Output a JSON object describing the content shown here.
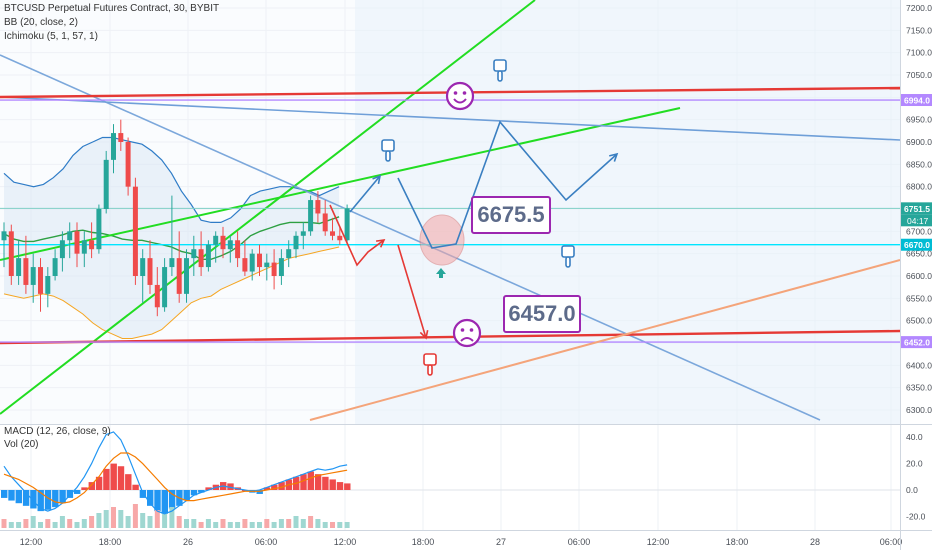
{
  "header": {
    "symbol_line": "BTCUSD Perpetual Futures Contract, 30, BYBIT",
    "bb": "BB (20, close, 2)",
    "ichimoku": "Ichimoku (5, 1, 57, 1)",
    "macd": "MACD (12, 26, close, 9)",
    "vol": "Vol (20)"
  },
  "colors": {
    "up": "#ef4b4b",
    "down": "#26a69a",
    "bb_line": "#2f7cc7",
    "bb_fill": "#dde9f5",
    "cloud": "#e8f1fa",
    "ichi_green": "#2ea043",
    "ichi_orange": "#f5a623",
    "channel_green": "#22dd22",
    "red_line": "#e53935",
    "purple_line": "#b388ff",
    "cyan_line": "#00e5ff",
    "steelblue_line": "#6f9fd8",
    "peach_line": "#f4a47a",
    "arrow_blue": "#3a7fc1",
    "arrow_red": "#e53935",
    "label_purple": "#9c27b0",
    "grid": "#eef1f6",
    "macd_pos": "#ef4b4b",
    "macd_neg": "#2196f3",
    "macd_line": "#2196f3",
    "signal_line": "#f57c00"
  },
  "annotations": {
    "target_label": "6675.5",
    "bottom_label": "6457.0"
  },
  "price_axis": {
    "ticks": [
      "7200.0",
      "7150.0",
      "7100.0",
      "7050.0",
      "7000.0",
      "6950.0",
      "6900.0",
      "6850.0",
      "6800.0",
      "6750.0",
      "6700.0",
      "6650.0",
      "6600.0",
      "6550.0",
      "6500.0",
      "6450.0",
      "6400.0",
      "6350.0",
      "6300.0"
    ],
    "badges": [
      {
        "value": "6994.0",
        "sub": "",
        "color": "#b388ff",
        "price": 6994
      },
      {
        "value": "6751.5",
        "sub": "04:17",
        "color": "#26a69a",
        "price": 6751.5
      },
      {
        "value": "6670.0",
        "sub": "",
        "color": "#00bcd4",
        "price": 6670
      },
      {
        "value": "6452.0",
        "sub": "",
        "color": "#b388ff",
        "price": 6452
      }
    ]
  },
  "macd_axis": {
    "ticks": [
      "40.0",
      "20.0",
      "0.0",
      "-20.0"
    ]
  },
  "time_axis": {
    "ticks": [
      "12:00",
      "18:00",
      "26",
      "06:00",
      "12:00",
      "18:00",
      "27",
      "06:00",
      "12:00",
      "18:00",
      "28",
      "06:00"
    ]
  },
  "chart_data": {
    "type": "candlestick",
    "title": "BTCUSD Perpetual Futures Contract, 30, BYBIT",
    "ylim": [
      6270,
      7225
    ],
    "x_ticks": [
      "12:00",
      "18:00",
      "26",
      "06:00",
      "12:00",
      "18:00",
      "27",
      "06:00",
      "12:00",
      "18:00",
      "28",
      "06:00"
    ],
    "candles": [
      {
        "o": 6680,
        "h": 6720,
        "l": 6620,
        "c": 6700
      },
      {
        "o": 6700,
        "h": 6715,
        "l": 6580,
        "c": 6600
      },
      {
        "o": 6600,
        "h": 6680,
        "l": 6580,
        "c": 6640
      },
      {
        "o": 6640,
        "h": 6690,
        "l": 6560,
        "c": 6580
      },
      {
        "o": 6580,
        "h": 6650,
        "l": 6540,
        "c": 6620
      },
      {
        "o": 6620,
        "h": 6640,
        "l": 6520,
        "c": 6560
      },
      {
        "o": 6560,
        "h": 6620,
        "l": 6530,
        "c": 6600
      },
      {
        "o": 6600,
        "h": 6660,
        "l": 6590,
        "c": 6640
      },
      {
        "o": 6640,
        "h": 6700,
        "l": 6610,
        "c": 6680
      },
      {
        "o": 6680,
        "h": 6720,
        "l": 6640,
        "c": 6700
      },
      {
        "o": 6700,
        "h": 6720,
        "l": 6620,
        "c": 6650
      },
      {
        "o": 6650,
        "h": 6700,
        "l": 6620,
        "c": 6680
      },
      {
        "o": 6680,
        "h": 6720,
        "l": 6640,
        "c": 6660
      },
      {
        "o": 6660,
        "h": 6760,
        "l": 6650,
        "c": 6750
      },
      {
        "o": 6750,
        "h": 6880,
        "l": 6740,
        "c": 6860
      },
      {
        "o": 6860,
        "h": 6940,
        "l": 6830,
        "c": 6920
      },
      {
        "o": 6920,
        "h": 6950,
        "l": 6880,
        "c": 6900
      },
      {
        "o": 6900,
        "h": 6910,
        "l": 6780,
        "c": 6800
      },
      {
        "o": 6800,
        "h": 6820,
        "l": 6580,
        "c": 6600
      },
      {
        "o": 6600,
        "h": 6660,
        "l": 6540,
        "c": 6640
      },
      {
        "o": 6640,
        "h": 6680,
        "l": 6560,
        "c": 6580
      },
      {
        "o": 6580,
        "h": 6620,
        "l": 6510,
        "c": 6530
      },
      {
        "o": 6530,
        "h": 6640,
        "l": 6520,
        "c": 6620
      },
      {
        "o": 6620,
        "h": 6780,
        "l": 6600,
        "c": 6640
      },
      {
        "o": 6640,
        "h": 6700,
        "l": 6540,
        "c": 6560
      },
      {
        "o": 6560,
        "h": 6660,
        "l": 6540,
        "c": 6640
      },
      {
        "o": 6640,
        "h": 6690,
        "l": 6600,
        "c": 6660
      },
      {
        "o": 6660,
        "h": 6700,
        "l": 6600,
        "c": 6620
      },
      {
        "o": 6620,
        "h": 6680,
        "l": 6610,
        "c": 6670
      },
      {
        "o": 6670,
        "h": 6700,
        "l": 6630,
        "c": 6690
      },
      {
        "o": 6690,
        "h": 6710,
        "l": 6640,
        "c": 6660
      },
      {
        "o": 6660,
        "h": 6690,
        "l": 6630,
        "c": 6680
      },
      {
        "o": 6680,
        "h": 6700,
        "l": 6620,
        "c": 6640
      },
      {
        "o": 6640,
        "h": 6680,
        "l": 6600,
        "c": 6610
      },
      {
        "o": 6610,
        "h": 6660,
        "l": 6590,
        "c": 6650
      },
      {
        "o": 6650,
        "h": 6670,
        "l": 6600,
        "c": 6620
      },
      {
        "o": 6620,
        "h": 6650,
        "l": 6590,
        "c": 6630
      },
      {
        "o": 6630,
        "h": 6660,
        "l": 6570,
        "c": 6600
      },
      {
        "o": 6600,
        "h": 6660,
        "l": 6580,
        "c": 6640
      },
      {
        "o": 6640,
        "h": 6680,
        "l": 6620,
        "c": 6660
      },
      {
        "o": 6660,
        "h": 6700,
        "l": 6640,
        "c": 6690
      },
      {
        "o": 6690,
        "h": 6720,
        "l": 6660,
        "c": 6700
      },
      {
        "o": 6700,
        "h": 6780,
        "l": 6690,
        "c": 6770
      },
      {
        "o": 6770,
        "h": 6790,
        "l": 6720,
        "c": 6740
      },
      {
        "o": 6740,
        "h": 6770,
        "l": 6690,
        "c": 6700
      },
      {
        "o": 6700,
        "h": 6730,
        "l": 6680,
        "c": 6690
      },
      {
        "o": 6690,
        "h": 6710,
        "l": 6670,
        "c": 6680
      },
      {
        "o": 6680,
        "h": 6760,
        "l": 6670,
        "c": 6751.5
      }
    ],
    "bollinger_upper": [
      6830,
      6810,
      6805,
      6800,
      6805,
      6820,
      6840,
      6870,
      6890,
      6900,
      6910,
      6910,
      6905,
      6900,
      6895,
      6880,
      6860,
      6830,
      6790,
      6760,
      6725,
      6720,
      6720,
      6730,
      6750,
      6780,
      6790,
      6795,
      6800,
      6800,
      6795,
      6790,
      6780,
      6790,
      6800
    ],
    "bollinger_lower": [
      6560,
      6555,
      6550,
      6555,
      6560,
      6555,
      6545,
      6530,
      6515,
      6495,
      6480,
      6470,
      6460,
      6460,
      6465,
      6470,
      6480,
      6500,
      6520,
      6540,
      6550,
      6555,
      6570,
      6580,
      6590,
      6600,
      6610,
      6620,
      6630,
      6640,
      6645,
      6650,
      6655,
      6660,
      6665
    ],
    "macd_hist": [
      -6,
      -8,
      -10,
      -12,
      -14,
      -16,
      -15,
      -13,
      -10,
      -6,
      -3,
      2,
      6,
      10,
      16,
      20,
      18,
      12,
      4,
      -6,
      -12,
      -16,
      -18,
      -14,
      -12,
      -8,
      -4,
      -2,
      2,
      4,
      6,
      5,
      2,
      0,
      -2,
      -3,
      2,
      4,
      6,
      8,
      10,
      12,
      14,
      12,
      10,
      8,
      6,
      5
    ],
    "macd_line": [
      18,
      10,
      4,
      -2,
      -8,
      -14,
      -16,
      -14,
      -10,
      -4,
      2,
      10,
      20,
      32,
      42,
      44,
      38,
      26,
      12,
      -2,
      -10,
      -16,
      -18,
      -16,
      -12,
      -8,
      -4,
      -2,
      0,
      2,
      3,
      2,
      1,
      0,
      -1,
      0,
      2,
      4,
      6,
      8,
      10,
      12,
      14,
      16,
      15,
      16,
      18,
      19
    ],
    "signal_line": [
      12,
      10,
      8,
      5,
      2,
      -2,
      -6,
      -9,
      -10,
      -9,
      -6,
      -2,
      4,
      10,
      18,
      24,
      28,
      28,
      25,
      20,
      14,
      8,
      2,
      -3,
      -6,
      -8,
      -8,
      -7,
      -6,
      -5,
      -4,
      -3,
      -2,
      -1,
      -1,
      -1,
      0,
      1,
      2,
      4,
      5,
      7,
      9,
      11,
      12,
      13,
      14,
      15
    ],
    "volume": [
      3,
      2,
      2,
      3,
      4,
      2,
      3,
      2,
      4,
      3,
      2,
      3,
      4,
      5,
      6,
      7,
      6,
      4,
      8,
      5,
      4,
      6,
      5,
      7,
      4,
      3,
      3,
      2,
      3,
      2,
      3,
      2,
      2,
      3,
      2,
      2,
      3,
      2,
      3,
      3,
      4,
      3,
      4,
      3,
      2,
      2,
      2,
      2
    ]
  }
}
